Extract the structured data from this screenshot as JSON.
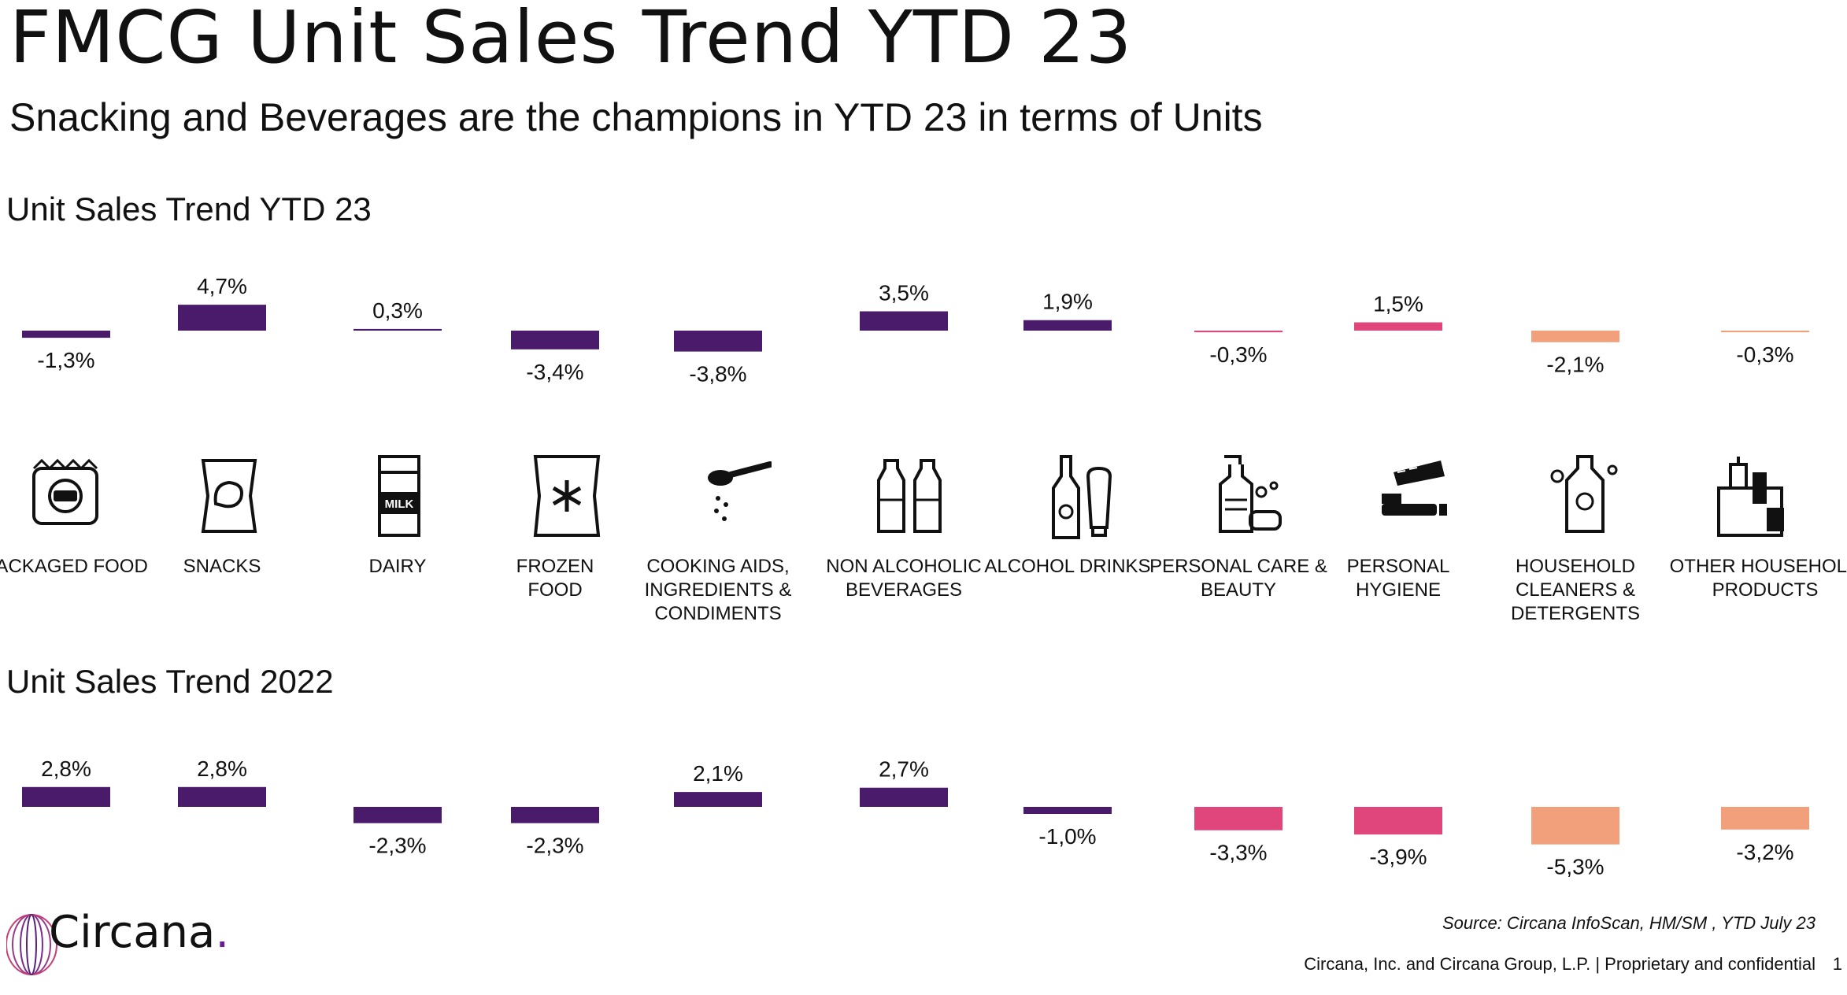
{
  "title": "FMCG Unit Sales Trend YTD 23",
  "subtitle": "Snacking and Beverages are the champions in YTD 23 in terms of Units",
  "sections": {
    "ytd_label": "Unit Sales Trend YTD 23",
    "y2022_label": "Unit Sales Trend 2022"
  },
  "categories": [
    {
      "label": "PACKAGED FOOD",
      "icon": "packaged-food-icon"
    },
    {
      "label": "SNACKS",
      "icon": "snacks-icon"
    },
    {
      "label": "DAIRY",
      "icon": "milk-icon"
    },
    {
      "label": "FROZEN\nFOOD",
      "icon": "frozen-food-icon"
    },
    {
      "label": "COOKING AIDS,\nINGREDIENTS &\nCONDIMENTS",
      "icon": "spoon-icon"
    },
    {
      "label": "NON ALCOHOLIC\nBEVERAGES",
      "icon": "bottles-icon"
    },
    {
      "label": "ALCOHOL DRINKS",
      "icon": "beer-wine-icon"
    },
    {
      "label": "PERSONAL CARE &\nBEAUTY",
      "icon": "soap-icon"
    },
    {
      "label": "PERSONAL\nHYGIENE",
      "icon": "toothbrush-icon"
    },
    {
      "label": "HOUSEHOLD CLEANERS &\nDETERGENTS",
      "icon": "detergent-icon"
    },
    {
      "label": "OTHER HOUSEHOLD\nPRODUCTS",
      "icon": "cleaning-supplies-icon"
    }
  ],
  "chart_data": [
    {
      "type": "bar",
      "name": "Unit Sales Trend YTD 23",
      "categories": [
        "PACKAGED FOOD",
        "SNACKS",
        "DAIRY",
        "FROZEN FOOD",
        "COOKING AIDS, INGREDIENTS & CONDIMENTS",
        "NON ALCOHOLIC BEVERAGES",
        "ALCOHOL DRINKS",
        "PERSONAL CARE & BEAUTY",
        "PERSONAL HYGIENE",
        "HOUSEHOLD CLEANERS & DETERGENTS",
        "OTHER HOUSEHOLD PRODUCTS"
      ],
      "values": [
        -1.3,
        4.7,
        0.3,
        -3.4,
        -3.8,
        3.5,
        1.9,
        -0.3,
        1.5,
        -2.1,
        -0.3
      ],
      "labels": [
        "-1,3%",
        "4,7%",
        "0,3%",
        "-3,4%",
        "-3,8%",
        "3,5%",
        "1,9%",
        "-0,3%",
        "1,5%",
        "-2,1%",
        "-0,3%"
      ],
      "colors": [
        "#4a1a6b",
        "#4a1a6b",
        "#4a1a6b",
        "#4a1a6b",
        "#4a1a6b",
        "#4a1a6b",
        "#4a1a6b",
        "#e0457b",
        "#e0457b",
        "#f2a07b",
        "#f2a07b"
      ]
    },
    {
      "type": "bar",
      "name": "Unit Sales Trend 2022",
      "categories": [
        "PACKAGED FOOD",
        "SNACKS",
        "DAIRY",
        "FROZEN FOOD",
        "COOKING AIDS, INGREDIENTS & CONDIMENTS",
        "NON ALCOHOLIC BEVERAGES",
        "ALCOHOL DRINKS",
        "PERSONAL CARE & BEAUTY",
        "PERSONAL HYGIENE",
        "HOUSEHOLD CLEANERS & DETERGENTS",
        "OTHER HOUSEHOLD PRODUCTS"
      ],
      "values": [
        2.8,
        2.8,
        -2.3,
        -2.3,
        2.1,
        2.7,
        -1.0,
        -3.3,
        -3.9,
        -5.3,
        -3.2
      ],
      "labels": [
        "2,8%",
        "2,8%",
        "-2,3%",
        "-2,3%",
        "2,1%",
        "2,7%",
        "-1,0%",
        "-3,3%",
        "-3,9%",
        "-5,3%",
        "-3,2%"
      ],
      "colors": [
        "#4a1a6b",
        "#4a1a6b",
        "#4a1a6b",
        "#4a1a6b",
        "#4a1a6b",
        "#4a1a6b",
        "#4a1a6b",
        "#e0457b",
        "#e0457b",
        "#f2a07b",
        "#f2a07b"
      ]
    }
  ],
  "source": "Source: Circana InfoScan, HM/SM , YTD July 23",
  "footer": "Circana, Inc. and Circana Group, L.P. |  Proprietary and confidential",
  "page_number": "1",
  "logo": {
    "text": "Circana",
    "dot": "."
  }
}
